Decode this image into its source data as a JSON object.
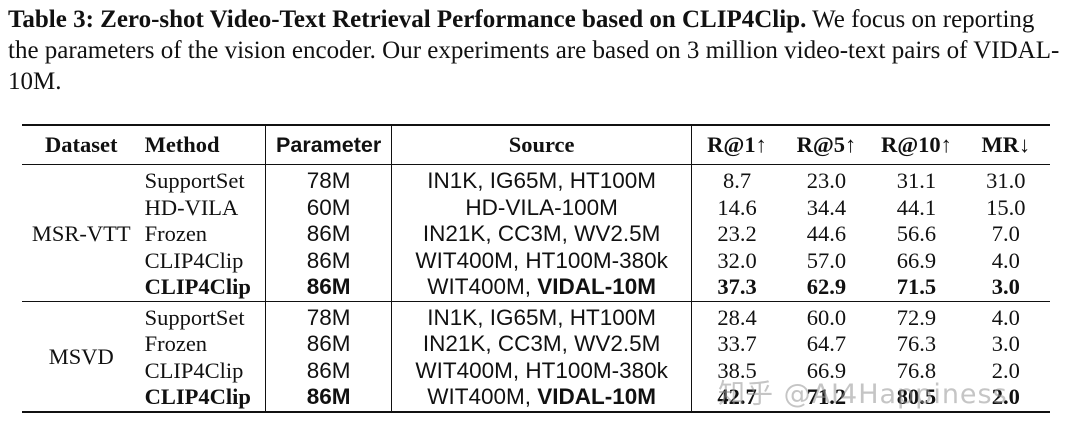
{
  "caption": {
    "label": "Table 3:",
    "title": "Zero-shot Video-Text Retrieval Performance based on CLIP4Clip.",
    "body": "We focus on reporting the parameters of the vision encoder. Our experiments are based on 3 million video-text pairs of VIDAL-10M."
  },
  "table": {
    "headers": [
      "Dataset",
      "Method",
      "Parameter",
      "Source",
      "R@1↑",
      "R@5↑",
      "R@10↑",
      "MR↓"
    ],
    "groups": [
      {
        "dataset": "MSR-VTT",
        "rows": [
          {
            "method": "SupportSet",
            "param": "78M",
            "source": "IN1K, IG65M, HT100M",
            "r1": "8.7",
            "r5": "23.0",
            "r10": "31.1",
            "mr": "31.0"
          },
          {
            "method": "HD-VILA",
            "param": "60M",
            "source": "HD-VILA-100M",
            "r1": "14.6",
            "r5": "34.4",
            "r10": "44.1",
            "mr": "15.0"
          },
          {
            "method": "Frozen",
            "param": "86M",
            "source": "IN21K, CC3M, WV2.5M",
            "r1": "23.2",
            "r5": "44.6",
            "r10": "56.6",
            "mr": "7.0"
          },
          {
            "method": "CLIP4Clip",
            "param": "86M",
            "source": "WIT400M, HT100M-380k",
            "r1": "32.0",
            "r5": "57.0",
            "r10": "66.9",
            "mr": "4.0"
          },
          {
            "method": "CLIP4Clip",
            "param": "86M",
            "source_a": "WIT400M, ",
            "source_b": "VIDAL-10M",
            "r1": "37.3",
            "r5": "62.9",
            "r10": "71.5",
            "mr": "3.0"
          }
        ]
      },
      {
        "dataset": "MSVD",
        "rows": [
          {
            "method": "SupportSet",
            "param": "78M",
            "source": "IN1K, IG65M, HT100M",
            "r1": "28.4",
            "r5": "60.0",
            "r10": "72.9",
            "mr": "4.0"
          },
          {
            "method": "Frozen",
            "param": "86M",
            "source": "IN21K, CC3M, WV2.5M",
            "r1": "33.7",
            "r5": "64.7",
            "r10": "76.3",
            "mr": "3.0"
          },
          {
            "method": "CLIP4Clip",
            "param": "86M",
            "source": "WIT400M, HT100M-380k",
            "r1": "38.5",
            "r5": "66.9",
            "r10": "76.8",
            "mr": "2.0"
          },
          {
            "method": "CLIP4Clip",
            "param": "86M",
            "source_a": "WIT400M, ",
            "source_b": "VIDAL-10M",
            "r1": "42.7",
            "r5": "71.2",
            "r10": "80.5",
            "mr": "2.0"
          }
        ]
      }
    ]
  },
  "watermark": "知乎 @AI4Happiness"
}
